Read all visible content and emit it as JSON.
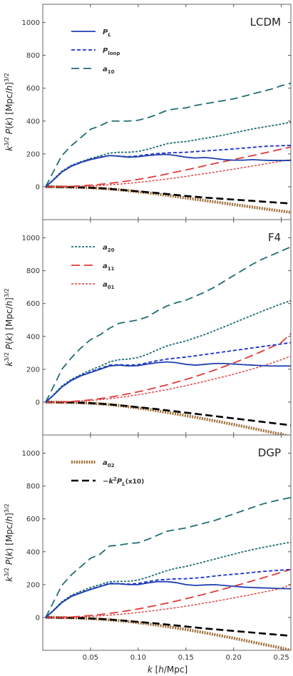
{
  "chart_data": {
    "type": "line",
    "xlabel": "k [h/Mpc]",
    "ylabel": "k^{3/2} P(k) [Mpc/h]^{3/2}",
    "xlim": [
      0.0,
      0.26
    ],
    "x_ticks": [
      0.05,
      0.1,
      0.15,
      0.2,
      0.25
    ],
    "x_tick_labels": [
      "0.05",
      "0.10",
      "0.15",
      "0.20",
      "0.25"
    ],
    "ylim": [
      -200,
      1050
    ],
    "y_ticks": [
      0,
      200,
      400,
      600,
      800,
      1000
    ],
    "y_tick_labels": [
      "0",
      "200",
      "400",
      "600",
      "800",
      "1000"
    ],
    "grid": false,
    "x": [
      0.003,
      0.01,
      0.02,
      0.03,
      0.04,
      0.05,
      0.06,
      0.07,
      0.08,
      0.09,
      0.1,
      0.11,
      0.12,
      0.13,
      0.14,
      0.15,
      0.16,
      0.17,
      0.18,
      0.19,
      0.2,
      0.21,
      0.22,
      0.23,
      0.24,
      0.25,
      0.26
    ],
    "series_styles": [
      {
        "name": "P_L",
        "color": "#1f3fb0",
        "dash": "",
        "width": 1.8
      },
      {
        "name": "P_loop",
        "color": "#1a2fd0",
        "dash": "5,3",
        "width": 1.8
      },
      {
        "name": "a_10",
        "color": "#1f6e73",
        "dash": "11,6",
        "width": 1.8
      },
      {
        "name": "a_20",
        "color": "#1f6e73",
        "dash": "3,2",
        "width": 1.8
      },
      {
        "name": "a_11",
        "color": "#e03a3a",
        "dash": "12,6",
        "width": 1.8
      },
      {
        "name": "a_01",
        "color": "#e03a3a",
        "dash": "3,2",
        "width": 1.4
      },
      {
        "name": "a_02",
        "color": "#a0703a",
        "dash": "2,1.5",
        "width": 4.2
      },
      {
        "name": "-k^2 P_L (x10)",
        "color": "#000000",
        "dash": "10,5",
        "width": 2.6
      }
    ],
    "panels": [
      {
        "label": "LCDM",
        "legend_position": "top-left",
        "legend_items": [
          "P_L",
          "P_loop",
          "a_10"
        ],
        "series": [
          {
            "name": "P_L",
            "values": [
              0,
              35,
              90,
              125,
              148,
              165,
              178,
              190,
              186,
              180,
              183,
              190,
              195,
              197,
              190,
              180,
              175,
              178,
              172,
              165,
              162,
              162,
              165,
              162,
              160,
              160,
              160
            ]
          },
          {
            "name": "P_loop",
            "values": [
              0,
              35,
              90,
              127,
              150,
              168,
              181,
              190,
              186,
              183,
              188,
              196,
              202,
              206,
              208,
              210,
              214,
              218,
              222,
              226,
              230,
              235,
              240,
              245,
              248,
              250,
              252
            ]
          },
          {
            "name": "a_10",
            "values": [
              0,
              80,
              190,
              250,
              300,
              350,
              370,
              400,
              400,
              400,
              405,
              420,
              440,
              465,
              475,
              480,
              495,
              505,
              515,
              525,
              535,
              550,
              565,
              580,
              595,
              615,
              630
            ]
          },
          {
            "name": "a_20",
            "values": [
              0,
              38,
              95,
              130,
              152,
              172,
              188,
              205,
              210,
              210,
              215,
              228,
              245,
              262,
              270,
              275,
              285,
              295,
              305,
              315,
              328,
              340,
              352,
              362,
              372,
              382,
              393
            ]
          },
          {
            "name": "a_11",
            "values": [
              0,
              0,
              1,
              3,
              6,
              10,
              15,
              21,
              28,
              36,
              45,
              55,
              66,
              78,
              90,
              102,
              115,
              128,
              141,
              153,
              166,
              178,
              190,
              203,
              216,
              229,
              242
            ]
          },
          {
            "name": "a_01",
            "values": [
              0,
              0,
              0,
              1,
              3,
              5,
              8,
              12,
              16,
              21,
              27,
              33,
              40,
              47,
              55,
              63,
              72,
              80,
              89,
              98,
              107,
              117,
              126,
              136,
              146,
              156,
              166
            ]
          },
          {
            "name": "a_02",
            "values": [
              0,
              0,
              -1,
              -2,
              -4,
              -6,
              -9,
              -13,
              -18,
              -24,
              -30,
              -37,
              -44,
              -52,
              -60,
              -68,
              -76,
              -84,
              -92,
              -100,
              -108,
              -116,
              -124,
              -132,
              -140,
              -148,
              -156
            ]
          },
          {
            "name": "-k^2 P_L (x10)",
            "values": [
              0,
              0,
              -1,
              -2,
              -4,
              -6,
              -9,
              -13,
              -18,
              -23,
              -28,
              -33,
              -38,
              -44,
              -50,
              -56,
              -61,
              -66,
              -70,
              -74,
              -78,
              -82,
              -86,
              -90,
              -94,
              -98,
              -102
            ]
          }
        ]
      },
      {
        "label": "F4",
        "legend_position": "top-left",
        "legend_items": [
          "a_20",
          "a_11",
          "a_01"
        ],
        "series": [
          {
            "name": "P_L",
            "values": [
              0,
              35,
              92,
              132,
              160,
              180,
              200,
              220,
              225,
              220,
              222,
              232,
              240,
              245,
              240,
              230,
              225,
              230,
              235,
              235,
              232,
              228,
              225,
              222,
              220,
              220,
              220
            ]
          },
          {
            "name": "P_loop",
            "values": [
              0,
              35,
              92,
              134,
              162,
              184,
              205,
              225,
              228,
              225,
              228,
              240,
              252,
              262,
              268,
              274,
              282,
              290,
              298,
              306,
              314,
              322,
              330,
              338,
              346,
              354,
              362
            ]
          },
          {
            "name": "a_10",
            "values": [
              0,
              80,
              200,
              270,
              330,
              380,
              410,
              450,
              480,
              490,
              500,
              520,
              555,
              585,
              605,
              620,
              645,
              670,
              700,
              735,
              770,
              805,
              840,
              870,
              895,
              920,
              945
            ]
          },
          {
            "name": "a_20",
            "values": [
              0,
              38,
              98,
              138,
              168,
              195,
              218,
              245,
              258,
              262,
              272,
              292,
              318,
              342,
              358,
              372,
              392,
              412,
              435,
              458,
              482,
              506,
              530,
              553,
              576,
              598,
              618
            ]
          },
          {
            "name": "a_11",
            "values": [
              0,
              0,
              1,
              4,
              8,
              14,
              21,
              30,
              40,
              51,
              63,
              76,
              90,
              105,
              121,
              138,
              156,
              175,
              195,
              216,
              238,
              261,
              285,
              310,
              336,
              363,
              418
            ]
          },
          {
            "name": "a_01",
            "values": [
              0,
              0,
              1,
              3,
              6,
              10,
              15,
              21,
              28,
              36,
              45,
              55,
              65,
              76,
              88,
              100,
              113,
              127,
              141,
              155,
              170,
              186,
              202,
              220,
              238,
              258,
              280
            ]
          },
          {
            "name": "a_02",
            "values": [
              0,
              0,
              -1,
              -2,
              -4,
              -7,
              -10,
              -15,
              -21,
              -28,
              -36,
              -44,
              -53,
              -62,
              -72,
              -82,
              -92,
              -103,
              -114,
              -125,
              -136,
              -148,
              -160,
              -172,
              -184,
              -196,
              -210
            ]
          },
          {
            "name": "-k^2 P_L (x10)",
            "values": [
              0,
              0,
              -1,
              -2,
              -4,
              -6,
              -10,
              -14,
              -19,
              -25,
              -31,
              -37,
              -43,
              -50,
              -57,
              -64,
              -71,
              -78,
              -85,
              -92,
              -99,
              -106,
              -113,
              -120,
              -127,
              -134,
              -141
            ]
          }
        ]
      },
      {
        "label": "DGP",
        "legend_position": "top-left",
        "legend_items": [
          "a_02",
          "-k^2 P_L (x10)"
        ],
        "series": [
          {
            "name": "P_L",
            "values": [
              0,
              35,
              91,
              128,
              150,
              170,
              188,
              205,
              205,
              200,
              200,
              210,
              218,
              218,
              212,
              200,
              195,
              198,
              200,
              195,
              190,
              185,
              182,
              180,
              178,
              176,
              175
            ]
          },
          {
            "name": "P_loop",
            "values": [
              0,
              35,
              91,
              130,
              152,
              172,
              190,
              208,
              206,
              203,
              207,
              218,
              228,
              232,
              235,
              236,
              240,
              245,
              252,
              258,
              263,
              268,
              274,
              280,
              284,
              288,
              292
            ]
          },
          {
            "name": "a_10",
            "values": [
              0,
              80,
              195,
              260,
              310,
              360,
              385,
              435,
              440,
              450,
              455,
              475,
              500,
              525,
              535,
              545,
              560,
              575,
              590,
              610,
              630,
              650,
              670,
              690,
              705,
              718,
              730
            ]
          },
          {
            "name": "a_20",
            "values": [
              0,
              38,
              96,
              135,
              160,
              182,
              200,
              218,
              220,
              220,
              228,
              245,
              265,
              285,
              300,
              310,
              325,
              340,
              355,
              370,
              385,
              400,
              413,
              425,
              437,
              448,
              458
            ]
          },
          {
            "name": "a_11",
            "values": [
              0,
              0,
              1,
              3,
              7,
              12,
              18,
              25,
              33,
              42,
              52,
              63,
              75,
              87,
              100,
              114,
              128,
              143,
              158,
              174,
              190,
              206,
              223,
              240,
              257,
              275,
              293
            ]
          },
          {
            "name": "a_01",
            "values": [
              0,
              0,
              0,
              2,
              4,
              7,
              10,
              14,
              19,
              24,
              30,
              37,
              44,
              52,
              60,
              69,
              78,
              88,
              98,
              108,
              119,
              130,
              141,
              153,
              165,
              177,
              200
            ]
          },
          {
            "name": "a_02",
            "values": [
              0,
              0,
              -1,
              -2,
              -4,
              -7,
              -10,
              -14,
              -19,
              -25,
              -32,
              -39,
              -47,
              -55,
              -64,
              -73,
              -83,
              -93,
              -104,
              -115,
              -126,
              -138,
              -150,
              -162,
              -174,
              -186,
              -200
            ]
          },
          {
            "name": "-k^2 P_L (x10)",
            "values": [
              0,
              0,
              -1,
              -2,
              -4,
              -6,
              -9,
              -13,
              -17,
              -22,
              -27,
              -32,
              -37,
              -43,
              -49,
              -55,
              -61,
              -67,
              -72,
              -77,
              -82,
              -87,
              -92,
              -97,
              -102,
              -107,
              -112
            ]
          }
        ]
      }
    ]
  }
}
